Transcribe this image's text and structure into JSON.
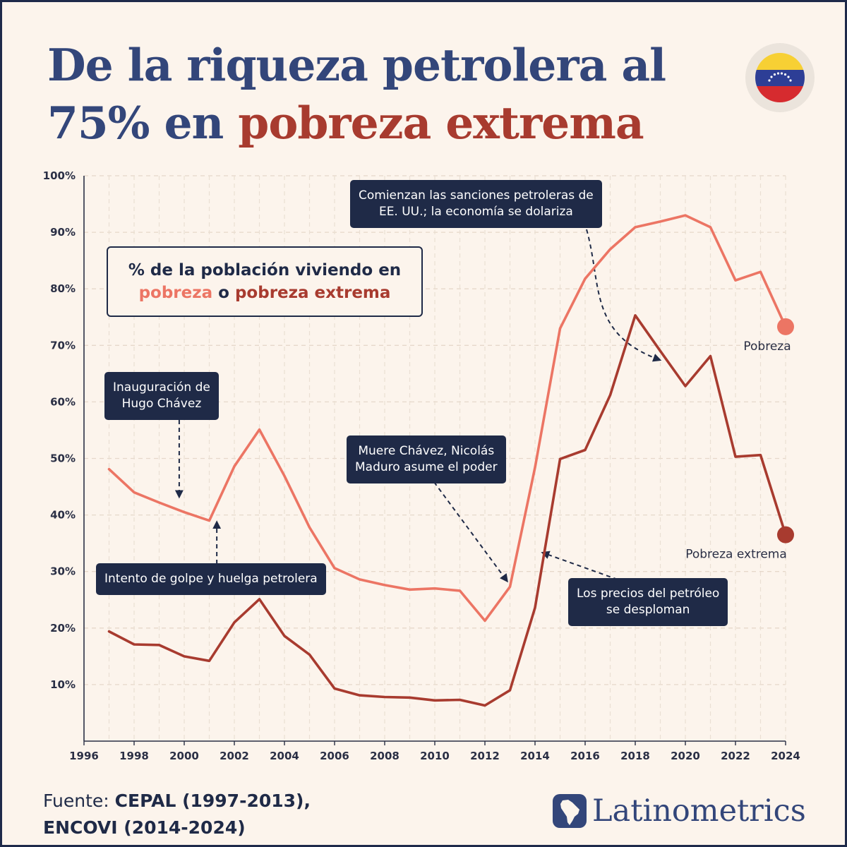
{
  "header": {
    "title_part1": "De la riqueza petrolera al",
    "title_part2": "75% en ",
    "title_accent": "pobreza extrema"
  },
  "flag": {
    "icon": "venezuela-flag-icon",
    "colors": [
      "#f7d034",
      "#2d3e96",
      "#d62b2f"
    ]
  },
  "legend": {
    "line1": "% de la población viviendo en",
    "pobreza": "pobreza",
    "connector": " o ",
    "extrema": "pobreza extrema"
  },
  "annotations": {
    "chavez": "Inauguración de\nHugo Chávez",
    "golpe": "Intento de golpe y huelga petrolera",
    "muere": "Muere Chávez, Nicolás\nMaduro asume el poder",
    "sanciones": "Comienzan las sanciones petroleras de\nEE. UU.; la economía se dolariza",
    "precios": "Los precios del petróleo\nse desploman"
  },
  "chart_data": {
    "type": "line",
    "x": [
      1997,
      1998,
      1999,
      2000,
      2001,
      2002,
      2003,
      2004,
      2005,
      2006,
      2007,
      2008,
      2009,
      2010,
      2011,
      2012,
      2013,
      2014,
      2015,
      2016,
      2017,
      2018,
      2019,
      2020,
      2021,
      2022,
      2023,
      2024
    ],
    "series": [
      {
        "name": "Pobreza",
        "color": "#ec7564",
        "values": [
          48.1,
          44.0,
          42.2,
          40.5,
          39.0,
          48.6,
          55.1,
          46.9,
          37.8,
          30.6,
          28.6,
          27.6,
          26.8,
          27.0,
          26.6,
          21.3,
          27.3,
          48.4,
          73.0,
          81.8,
          87.0,
          90.9,
          91.9,
          93.0,
          90.9,
          81.5,
          83.0,
          73.3
        ]
      },
      {
        "name": "Pobreza extrema",
        "color": "#a83b2f",
        "values": [
          19.4,
          17.1,
          17.0,
          15.0,
          14.2,
          21.0,
          25.1,
          18.6,
          15.3,
          9.3,
          8.1,
          7.8,
          7.7,
          7.2,
          7.3,
          6.3,
          9.0,
          23.6,
          49.9,
          51.5,
          61.2,
          75.3,
          69.0,
          62.8,
          68.1,
          50.3,
          50.6,
          36.5
        ]
      }
    ],
    "y_ticks": [
      "10%",
      "20%",
      "30%",
      "40%",
      "50%",
      "60%",
      "70%",
      "80%",
      "90%",
      "100%"
    ],
    "x_ticks": [
      "1996",
      "1998",
      "2000",
      "2002",
      "2004",
      "2006",
      "2008",
      "2010",
      "2012",
      "2014",
      "2016",
      "2018",
      "2020",
      "2022",
      "2024"
    ],
    "xlim": [
      1996,
      2024
    ],
    "ylim": [
      0,
      100
    ],
    "grid": true,
    "end_labels": [
      "Pobreza",
      "Pobreza extrema"
    ]
  },
  "footer": {
    "source_prefix": "Fuente: ",
    "source_line1": "CEPAL (1997-2013),",
    "source_line2": "ENCOVI (2014-2024)",
    "brand": "Latinometrics",
    "brand_icon": "latinometrics-map-logo-icon"
  }
}
